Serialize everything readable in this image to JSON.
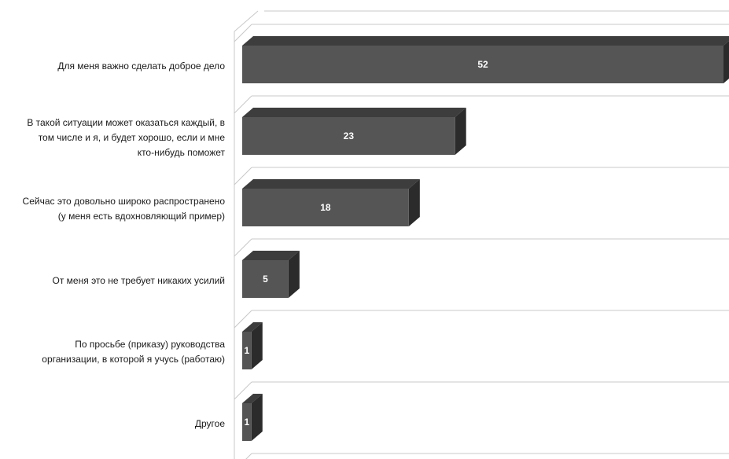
{
  "chart_data": {
    "type": "bar",
    "orientation": "horizontal",
    "style": "3d",
    "categories": [
      "Для меня важно сделать доброе дело",
      "В такой ситуации может оказаться каждый, в том числе и я, и будет хорошо, если и мне кто-нибудь поможет",
      "Сейчас это довольно широко распространено (у меня есть вдохновляющий пример)",
      "От меня это не требует никаких усилий",
      "По просьбе (приказу) руководства организации, в которой я учусь (работаю)",
      "Другое"
    ],
    "category_lines": [
      [
        "Для меня важно сделать доброе дело"
      ],
      [
        "В такой ситуации может оказаться каждый, в",
        "том числе и я, и будет хорошо, если и мне",
        "кто-нибудь поможет"
      ],
      [
        "Сейчас это довольно широко распространено",
        "(у меня есть вдохновляющий пример)"
      ],
      [
        "От меня это не требует никаких усилий"
      ],
      [
        "По просьбе (приказу) руководства",
        "организации, в которой я учусь (работаю)"
      ],
      [
        "Другое"
      ]
    ],
    "values": [
      52,
      23,
      18,
      5,
      1,
      1
    ],
    "data_labels": [
      "52",
      "23",
      "18",
      "5",
      "1",
      "1"
    ],
    "title": "",
    "xlabel": "",
    "ylabel": "",
    "xlim": [
      0,
      52
    ],
    "grid": true,
    "legend": "none",
    "colors": {
      "bar_front": "#555555",
      "bar_top": "#3d3d3d",
      "bar_side": "#2b2b2b",
      "grid": "#c8c8c8",
      "label_on_bar": "#ffffff"
    }
  }
}
